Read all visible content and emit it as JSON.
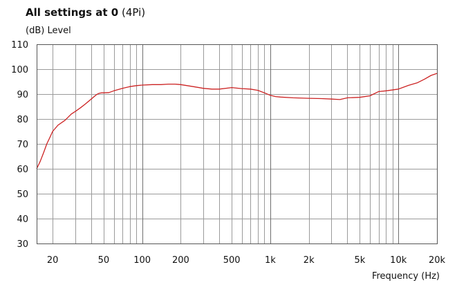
{
  "header": {
    "title_bold": "All settings at 0",
    "title_suffix": "(4Pi)",
    "ylabel": "(dB)  Level"
  },
  "footer": {
    "xlabel": "Frequency (Hz)"
  },
  "colors": {
    "curve": "#cc2222",
    "grid": "#9a9a9a",
    "frame": "#555555"
  },
  "chart_data": {
    "type": "line",
    "title": "All settings at 0 (4Pi)",
    "xlabel": "Frequency (Hz)",
    "ylabel": "(dB)  Level",
    "xscale": "log",
    "xlim": [
      15,
      20000
    ],
    "ylim": [
      30,
      110
    ],
    "grid": true,
    "ytick_values": [
      30,
      40,
      50,
      60,
      70,
      80,
      90,
      100,
      110
    ],
    "ytick_labels": [
      "30",
      "40",
      "50",
      "60",
      "70",
      "80",
      "90",
      "100",
      "110"
    ],
    "xtick_values": [
      20,
      50,
      100,
      200,
      500,
      1000,
      2000,
      5000,
      10000,
      20000
    ],
    "xtick_labels": [
      "20",
      "50",
      "100",
      "200",
      "500",
      "1k",
      "2k",
      "5k",
      "10k",
      "20k"
    ],
    "series": [
      {
        "color": "#cc2222",
        "x": [
          15,
          16,
          17,
          18,
          19,
          20,
          22,
          25,
          28,
          30,
          33,
          36,
          40,
          44,
          46,
          48,
          50,
          55,
          60,
          70,
          80,
          90,
          100,
          120,
          140,
          160,
          180,
          200,
          250,
          300,
          350,
          400,
          500,
          600,
          700,
          800,
          900,
          1000,
          1100,
          1200,
          1500,
          2000,
          2500,
          3000,
          3500,
          4000,
          5000,
          6000,
          7000,
          8000,
          10000,
          12000,
          14000,
          16000,
          18000,
          20000
        ],
        "y": [
          60,
          63,
          66.5,
          70,
          72.5,
          75,
          77.5,
          79.5,
          82,
          83,
          84.5,
          86,
          88,
          89.8,
          90.3,
          90.5,
          90.5,
          90.6,
          91.3,
          92.3,
          93,
          93.4,
          93.6,
          93.8,
          93.8,
          94,
          94,
          93.8,
          93,
          92.3,
          92,
          92,
          92.6,
          92.2,
          92,
          91.5,
          90.5,
          89.5,
          89,
          88.8,
          88.5,
          88.3,
          88.2,
          88,
          87.8,
          88.5,
          88.7,
          89.3,
          91,
          91.3,
          92,
          93.5,
          94.5,
          96,
          97.5,
          98.3
        ]
      }
    ]
  }
}
